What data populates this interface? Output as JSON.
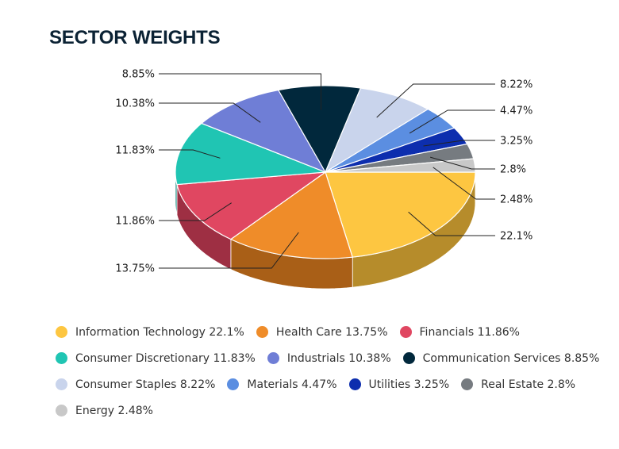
{
  "chart_data": {
    "type": "pie",
    "title": "SECTOR WEIGHTS",
    "legend_position": "bottom",
    "slices": [
      {
        "name": "Information Technology",
        "value": 22.1,
        "label": "22.1%",
        "legend": "Information Technology 22.1%",
        "color": "#FDC641",
        "side_color": "#B68C2B"
      },
      {
        "name": "Health Care",
        "value": 13.75,
        "label": "13.75%",
        "legend": "Health Care 13.75%",
        "color": "#EF8C29",
        "side_color": "#A95F17"
      },
      {
        "name": "Financials",
        "value": 11.86,
        "label": "11.86%",
        "legend": "Financials 11.86%",
        "color": "#E04761",
        "side_color": "#9E2F43"
      },
      {
        "name": "Consumer Discretionary",
        "value": 11.83,
        "label": "11.83%",
        "legend": "Consumer Discretionary 11.83%",
        "color": "#20C5B3",
        "side_color": "#158A7E"
      },
      {
        "name": "Industrials",
        "value": 10.38,
        "label": "10.38%",
        "legend": "Industrials 10.38%",
        "color": "#6F7ED6",
        "side_color": "#4B5797"
      },
      {
        "name": "Communication Services",
        "value": 8.85,
        "label": "8.85%",
        "legend": "Communication Services 8.85%",
        "color": "#01283C",
        "side_color": "#001521"
      },
      {
        "name": "Consumer Staples",
        "value": 8.22,
        "label": "8.22%",
        "legend": "Consumer Staples 8.22%",
        "color": "#C9D4EC",
        "side_color": "#8F98AD"
      },
      {
        "name": "Materials",
        "value": 4.47,
        "label": "4.47%",
        "legend": "Materials 4.47%",
        "color": "#5B8EE1",
        "side_color": "#3F649F"
      },
      {
        "name": "Utilities",
        "value": 3.25,
        "label": "3.25%",
        "legend": "Utilities 3.25%",
        "color": "#0D2EAE",
        "side_color": "#081E75"
      },
      {
        "name": "Real Estate",
        "value": 2.8,
        "label": "2.8%",
        "legend": "Real Estate 2.8%",
        "color": "#767B80",
        "side_color": "#505458"
      },
      {
        "name": "Energy",
        "value": 2.48,
        "label": "2.48%",
        "legend": "Energy 2.48%",
        "color": "#C8C8C8",
        "side_color": "#8C8C8C"
      }
    ]
  }
}
